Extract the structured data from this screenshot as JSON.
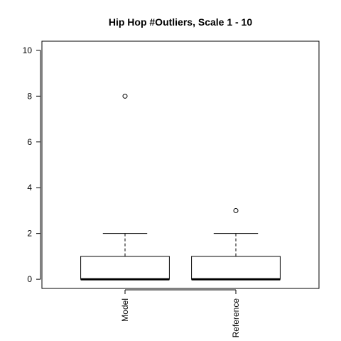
{
  "chart_data": {
    "type": "boxplot",
    "title": "Hip Hop #Outliers, Scale 1 - 10",
    "xlabel": "",
    "ylabel": "",
    "categories": [
      "Model",
      "Reference"
    ],
    "ylim": [
      -0.4,
      10.4
    ],
    "yticks": [
      0,
      2,
      4,
      6,
      8,
      10
    ],
    "grid": false,
    "boxes": [
      {
        "name": "Model",
        "min": 0,
        "q1": 0,
        "median": 0,
        "q3": 1,
        "max": 2,
        "outliers": [
          8
        ]
      },
      {
        "name": "Reference",
        "min": 0,
        "q1": 0,
        "median": 0,
        "q3": 1,
        "max": 2,
        "outliers": [
          3
        ]
      }
    ]
  }
}
